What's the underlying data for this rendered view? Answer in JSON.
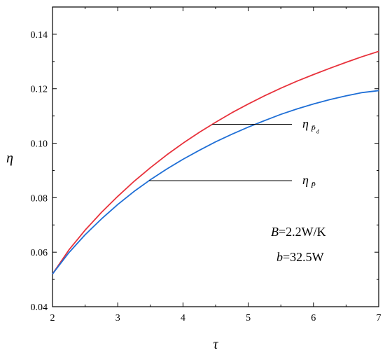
{
  "chart_data": {
    "type": "line",
    "xlabel": "τ",
    "ylabel": "η",
    "xlim": [
      2,
      7
    ],
    "ylim": [
      0.04,
      0.15
    ],
    "x_ticks": [
      "2",
      "3",
      "4",
      "5",
      "6",
      "7"
    ],
    "y_ticks": [
      "0.04",
      "0.06",
      "0.08",
      "0.10",
      "0.12",
      "0.14"
    ],
    "series": [
      {
        "name": "η_{P̄d}",
        "color": "#e8323c",
        "x": [
          2,
          2.25,
          2.5,
          2.75,
          3,
          3.25,
          3.5,
          3.75,
          4,
          4.25,
          4.5,
          4.75,
          5,
          5.25,
          5.5,
          5.75,
          6,
          6.25,
          6.5,
          6.75,
          7
        ],
        "y": [
          0.052,
          0.0608,
          0.0681,
          0.0746,
          0.0805,
          0.086,
          0.091,
          0.0957,
          0.1,
          0.104,
          0.1077,
          0.1112,
          0.1144,
          0.1174,
          0.1202,
          0.1228,
          0.1252,
          0.1275,
          0.1297,
          0.1318,
          0.1337
        ]
      },
      {
        "name": "η_{P̄}",
        "color": "#1f6fd6",
        "x": [
          2,
          2.25,
          2.5,
          2.75,
          3,
          3.25,
          3.5,
          3.75,
          4,
          4.25,
          4.5,
          4.75,
          5,
          5.25,
          5.5,
          5.75,
          6,
          6.25,
          6.5,
          6.75,
          7
        ],
        "y": [
          0.052,
          0.0598,
          0.0664,
          0.0722,
          0.0775,
          0.0823,
          0.0866,
          0.0905,
          0.0941,
          0.0974,
          0.1005,
          0.1033,
          0.1059,
          0.1083,
          0.1106,
          0.1126,
          0.1144,
          0.116,
          0.1174,
          0.1186,
          0.1193
        ]
      }
    ],
    "annotations": [
      {
        "series": 0,
        "label_main": "η",
        "label_sub": "P̄",
        "label_subsub": "d",
        "at_x": 4.45
      },
      {
        "series": 1,
        "label_main": "η",
        "label_sub": "P̄",
        "label_subsub": "",
        "at_x": 3.48
      }
    ],
    "params": [
      {
        "symbol": "B",
        "rest": "=2.2W/K"
      },
      {
        "symbol": "b",
        "rest": "=32.5W"
      }
    ],
    "grid": false,
    "legend": "none"
  }
}
